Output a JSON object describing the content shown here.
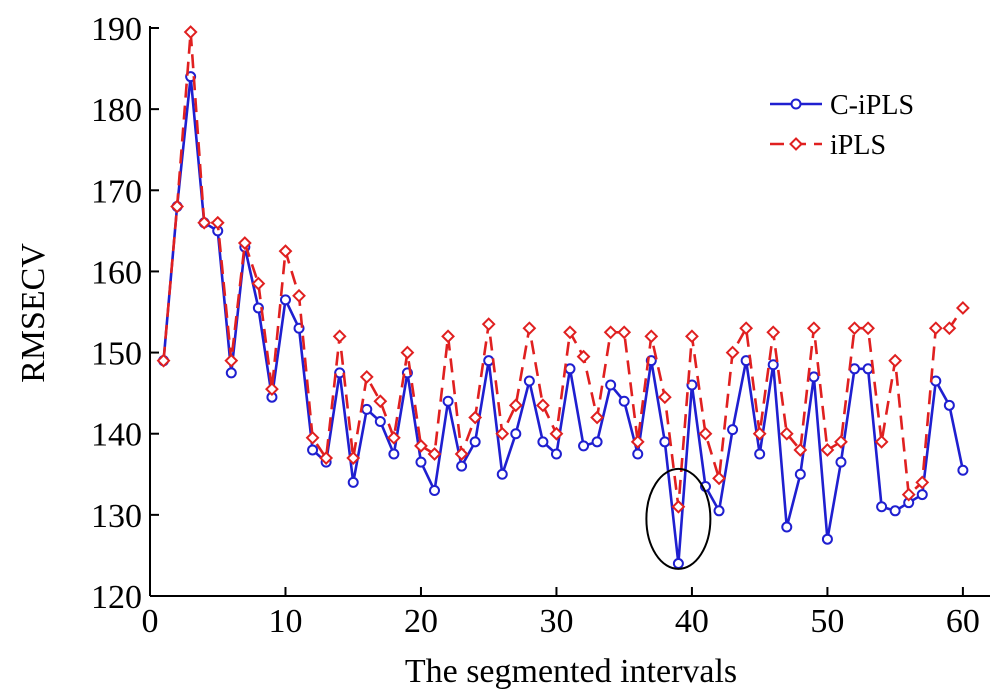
{
  "chart_data": {
    "type": "line",
    "title": "",
    "xlabel": "The segmented intervals",
    "ylabel": "RMSECV",
    "xlim": [
      0,
      62
    ],
    "ylim": [
      120,
      190
    ],
    "xticks": [
      0,
      10,
      20,
      30,
      40,
      50,
      60
    ],
    "yticks": [
      120,
      130,
      140,
      150,
      160,
      170,
      180,
      190
    ],
    "grid": false,
    "legend": "top-right",
    "x": [
      1,
      2,
      3,
      4,
      5,
      6,
      7,
      8,
      9,
      10,
      11,
      12,
      13,
      14,
      15,
      16,
      17,
      18,
      19,
      20,
      21,
      22,
      23,
      24,
      25,
      26,
      27,
      28,
      29,
      30,
      31,
      32,
      33,
      34,
      35,
      36,
      37,
      38,
      39,
      40,
      41,
      42,
      43,
      44,
      45,
      46,
      47,
      48,
      49,
      50,
      51,
      52,
      53,
      54,
      55,
      56,
      57,
      58,
      59,
      60
    ],
    "series": [
      {
        "name": "C-iPLS",
        "color": "#1f1fd0",
        "marker": "circle",
        "dash": "solid",
        "values": [
          149,
          168,
          184,
          166,
          165,
          147.5,
          163,
          155.5,
          144.5,
          156.5,
          153,
          138,
          136.5,
          147.5,
          134,
          143,
          141.5,
          137.5,
          147.5,
          136.5,
          133,
          144,
          136,
          139,
          149,
          135,
          140,
          146.5,
          139,
          137.5,
          148,
          138.5,
          139,
          146,
          144,
          137.5,
          149,
          139,
          124,
          146,
          133.5,
          130.5,
          140.5,
          149,
          137.5,
          148.5,
          128.5,
          135,
          147,
          127,
          136.5,
          148,
          148,
          131,
          130.5,
          131.5,
          132.5,
          146.5,
          143.5,
          135.5
        ]
      },
      {
        "name": "iPLS",
        "color": "#e02020",
        "marker": "diamond",
        "dash": "dashed",
        "values": [
          149,
          168,
          189.5,
          166,
          166,
          149,
          163.5,
          158.5,
          145.5,
          162.5,
          157,
          139.5,
          137,
          152,
          137,
          147,
          144,
          139.5,
          150,
          138.5,
          137.5,
          152,
          137.5,
          142,
          153.5,
          140,
          143.5,
          153,
          143.5,
          140,
          152.5,
          149.5,
          142,
          152.5,
          152.5,
          139,
          152,
          144.5,
          131,
          152,
          140,
          134.5,
          150,
          153,
          140,
          152.5,
          140,
          138,
          153,
          138,
          139,
          153,
          153,
          139,
          149,
          132.5,
          134,
          153,
          153,
          155.5
        ]
      }
    ],
    "annotations": [
      {
        "type": "ellipse",
        "x": 39,
        "y": 129.5,
        "label": ""
      }
    ]
  }
}
